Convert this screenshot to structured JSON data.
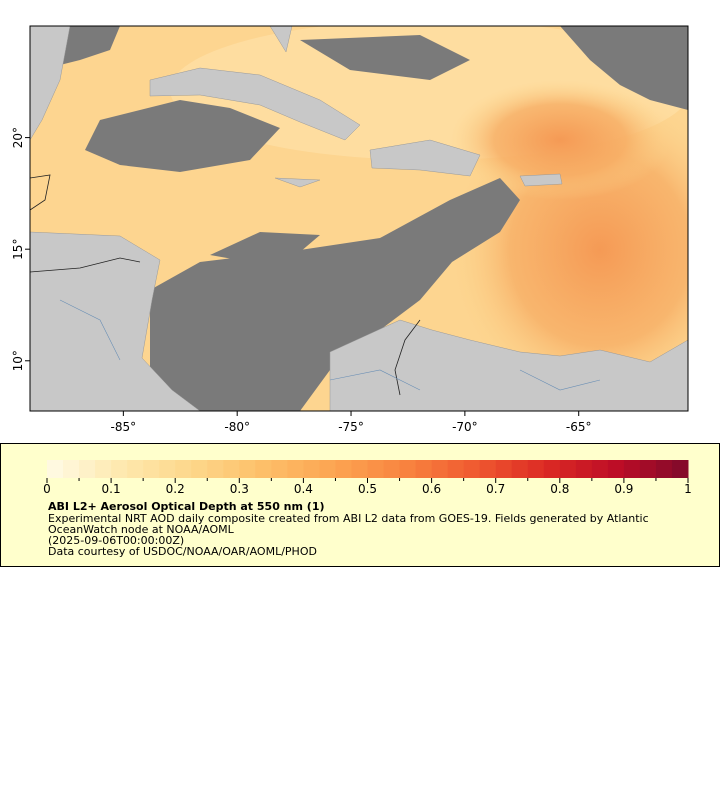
{
  "map": {
    "type": "map",
    "xlim": [
      -89.1,
      -60.2
    ],
    "ylim": [
      7.75,
      25
    ],
    "xticks": [
      {
        "value": -85,
        "label": "-85°"
      },
      {
        "value": -80,
        "label": "-80°"
      },
      {
        "value": -75,
        "label": "-75°"
      },
      {
        "value": -70,
        "label": "-70°"
      },
      {
        "value": -65,
        "label": "-65°"
      }
    ],
    "yticks": [
      {
        "value": 10,
        "label": "10°"
      },
      {
        "value": 15,
        "label": "15°"
      },
      {
        "value": 20,
        "label": "20°"
      }
    ]
  },
  "colorbar": {
    "range": [
      0,
      1
    ],
    "ticks": [
      0,
      0.1,
      0.2,
      0.3,
      0.4,
      0.5,
      0.6,
      0.7,
      0.8,
      0.9,
      1
    ],
    "colors": [
      "#fffbe6",
      "#fee9b0",
      "#fdd88c",
      "#fdc06a",
      "#fca552",
      "#f98540",
      "#f05a30",
      "#dc2a24",
      "#bd0d26",
      "#7f0a2a"
    ]
  },
  "legend": {
    "title": "ABI L2+ Aerosol Optical Depth at 550 nm (1)",
    "lines": [
      "Experimental NRT AOD daily composite created from ABI L2 data from GOES-19. Fields generated by Atlantic",
      "OceanWatch node at NOAA/AOML",
      "(2025-09-06T00:00:00Z)",
      "Data courtesy of USDOC/NOAA/OAR/AOML/PHOD"
    ]
  }
}
